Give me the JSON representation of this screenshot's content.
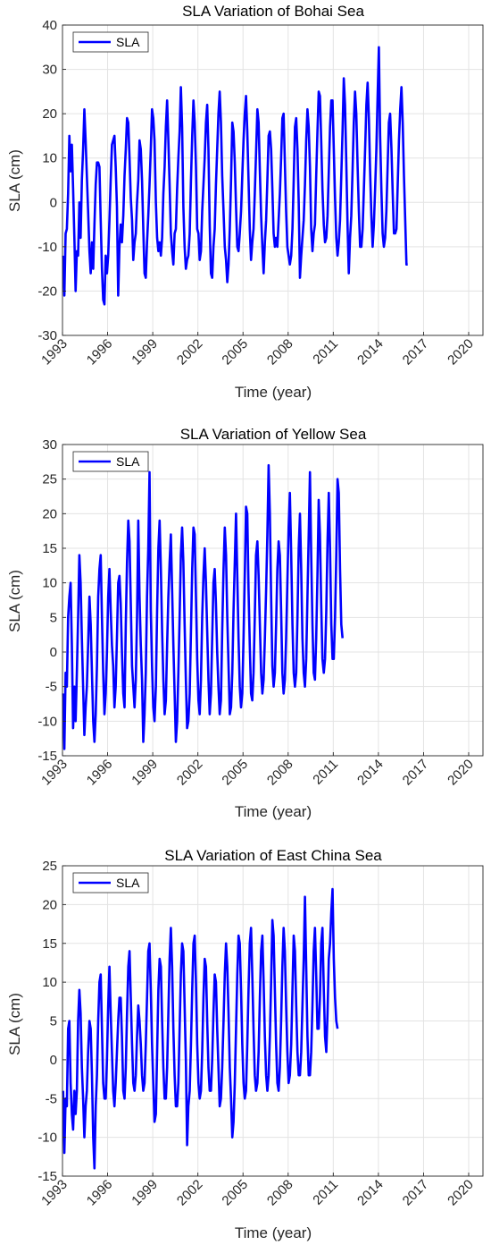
{
  "chart_data": [
    {
      "type": "line",
      "title": "SLA Variation of Bohai Sea",
      "xlabel": "Time (year)",
      "ylabel": "SLA (cm)",
      "xlim": [
        1993.0,
        2020.95
      ],
      "ylim": [
        -30,
        40
      ],
      "xticks": [
        "1993",
        "1996",
        "1999",
        "2002",
        "2005",
        "2008",
        "2011",
        "2014",
        "2017",
        "2020"
      ],
      "yticks": [
        "-30",
        "-20",
        "-10",
        "0",
        "10",
        "20",
        "30",
        "40"
      ],
      "grid": true,
      "legend": "top-left",
      "series": [
        {
          "name": "SLA",
          "color": "#0000ff",
          "x_start": 1993.04,
          "x_step": 0.0833,
          "values": [
            -12,
            -21,
            -7,
            -6,
            2,
            15,
            7,
            13,
            3,
            -8,
            -20,
            -11,
            -12,
            0,
            -8,
            5,
            12,
            21,
            14,
            6,
            -2,
            -11,
            -16,
            -9,
            -15,
            -5,
            4,
            9,
            9,
            8,
            -4,
            -15,
            -22,
            -23,
            -12,
            -16,
            -12,
            -4,
            5,
            13,
            14,
            15,
            8,
            -1,
            -21,
            -10,
            -5,
            -9,
            -3,
            6,
            12,
            19,
            18,
            10,
            1,
            -4,
            -13,
            -9,
            -7,
            0,
            5,
            14,
            12,
            5,
            -6,
            -16,
            -17,
            -9,
            -3,
            4,
            12,
            21,
            19,
            14,
            0,
            -8,
            -11,
            -9,
            -12,
            -8,
            2,
            8,
            17,
            23,
            14,
            4,
            -7,
            -11,
            -14,
            -7,
            -6,
            3,
            10,
            16,
            26,
            17,
            -1,
            -10,
            -15,
            -13,
            -12,
            -7,
            5,
            15,
            23,
            18,
            8,
            -6,
            -7,
            -13,
            -11,
            -2,
            4,
            10,
            18,
            22,
            12,
            -5,
            -16,
            -17,
            -10,
            -6,
            4,
            12,
            20,
            25,
            18,
            6,
            -2,
            -10,
            -13,
            -18,
            -14,
            -6,
            5,
            18,
            16,
            9,
            -1,
            -10,
            -11,
            -7,
            -2,
            6,
            14,
            20,
            24,
            16,
            5,
            -6,
            -13,
            -9,
            -6,
            2,
            11,
            21,
            18,
            7,
            -3,
            -10,
            -16,
            -9,
            -4,
            5,
            15,
            16,
            12,
            3,
            -7,
            -10,
            -8,
            -10,
            -4,
            2,
            10,
            19,
            20,
            9,
            -2,
            -10,
            -12,
            -14,
            -12,
            -6,
            5,
            17,
            19,
            12,
            0,
            -17,
            -12,
            -8,
            -4,
            4,
            14,
            21,
            17,
            8,
            -6,
            -11,
            -7,
            -5,
            6,
            16,
            25,
            24,
            14,
            3,
            -5,
            -9,
            -8,
            -3,
            7,
            17,
            23,
            23,
            12,
            1,
            -8,
            -12,
            -9,
            -4,
            6,
            16,
            28,
            22,
            9,
            -5,
            -16,
            -8,
            -3,
            7,
            18,
            25,
            20,
            8,
            -2,
            -10,
            -10,
            -6,
            3,
            12,
            22,
            27,
            19,
            7,
            -3,
            -10,
            -5,
            3,
            12,
            24,
            35,
            15,
            3,
            -7,
            -10,
            -8,
            -2,
            8,
            18,
            20,
            12,
            2,
            -7,
            -7,
            -6,
            4,
            14,
            21,
            26,
            18,
            6,
            -4,
            -14,
            -14
          ]
        }
      ]
    },
    {
      "type": "line",
      "title": "SLA Variation of Yellow Sea",
      "xlabel": "Time (year)",
      "ylabel": "SLA (cm)",
      "xlim": [
        1993.0,
        2020.95
      ],
      "ylim": [
        -15,
        30
      ],
      "xticks": [
        "1993",
        "1996",
        "1999",
        "2002",
        "2005",
        "2008",
        "2011",
        "2014",
        "2017",
        "2020"
      ],
      "yticks": [
        "-15",
        "-10",
        "-5",
        "0",
        "5",
        "10",
        "15",
        "20",
        "25",
        "30"
      ],
      "grid": true,
      "legend": "top-left",
      "series": [
        {
          "name": "SLA",
          "color": "#0000ff",
          "x_start": 1993.04,
          "x_step": 0.0833,
          "values": [
            -6,
            -14,
            -3,
            -5,
            5,
            8,
            10,
            1,
            -11,
            -5,
            -10,
            -3,
            5,
            14,
            10,
            2,
            -5,
            -12,
            -8,
            -5,
            1,
            8,
            4,
            -3,
            -10,
            -13,
            -9,
            -2,
            8,
            12,
            14,
            5,
            -3,
            -9,
            -6,
            0,
            8,
            12,
            6,
            1,
            -2,
            -8,
            -5,
            2,
            10,
            11,
            7,
            0,
            -6,
            -8,
            4,
            13,
            19,
            16,
            7,
            -2,
            -5,
            -8,
            -4,
            5,
            19,
            8,
            1,
            -4,
            -13,
            -9,
            -3,
            8,
            15,
            26,
            6,
            -2,
            -8,
            -10,
            -5,
            6,
            15,
            19,
            12,
            3,
            -4,
            -9,
            -7,
            1,
            8,
            13,
            17,
            9,
            1,
            -6,
            -13,
            -10,
            -3,
            5,
            14,
            18,
            13,
            4,
            -4,
            -11,
            -10,
            -6,
            3,
            12,
            18,
            17,
            8,
            -1,
            -7,
            -9,
            -4,
            5,
            11,
            15,
            10,
            3,
            -4,
            -9,
            -6,
            2,
            10,
            12,
            7,
            0,
            -5,
            -9,
            -7,
            3,
            12,
            18,
            14,
            5,
            -2,
            -9,
            -8,
            -3,
            6,
            13,
            20,
            11,
            2,
            -5,
            -8,
            -6,
            2,
            11,
            21,
            20,
            9,
            1,
            -6,
            -7,
            -3,
            5,
            14,
            16,
            11,
            4,
            -3,
            -6,
            -4,
            2,
            9,
            17,
            27,
            20,
            8,
            -2,
            -5,
            -3,
            4,
            12,
            16,
            14,
            6,
            -3,
            -6,
            -4,
            2,
            10,
            18,
            23,
            14,
            4,
            -3,
            -5,
            -3,
            5,
            15,
            20,
            12,
            2,
            -3,
            -5,
            -1,
            8,
            17,
            26,
            14,
            4,
            -3,
            -4,
            2,
            11,
            22,
            17,
            7,
            -1,
            -3,
            -1,
            6,
            16,
            23,
            15,
            4,
            -1,
            -1,
            5,
            14,
            25,
            23,
            12,
            4,
            2
          ]
        }
      ]
    },
    {
      "type": "line",
      "title": "SLA Variation of East China Sea",
      "xlabel": "Time (year)",
      "ylabel": "SLA (cm)",
      "xlim": [
        1993.0,
        2020.95
      ],
      "ylim": [
        -15,
        25
      ],
      "xticks": [
        "1993",
        "1996",
        "1999",
        "2002",
        "2005",
        "2008",
        "2011",
        "2014",
        "2017",
        "2020"
      ],
      "yticks": [
        "-15",
        "-10",
        "-5",
        "0",
        "5",
        "10",
        "15",
        "20",
        "25"
      ],
      "grid": true,
      "legend": "top-left",
      "series": [
        {
          "name": "SLA",
          "color": "#0000ff",
          "x_start": 1993.04,
          "x_step": 0.0833,
          "values": [
            -4,
            -12,
            -5,
            -6,
            4,
            5,
            -3,
            -7,
            -9,
            -4,
            -7,
            -4,
            5,
            9,
            6,
            -1,
            -5,
            -10,
            -6,
            -4,
            1,
            5,
            4,
            -2,
            -10,
            -14,
            -6,
            -2,
            5,
            10,
            11,
            4,
            -3,
            -5,
            -5,
            0,
            7,
            12,
            6,
            1,
            -4,
            -6,
            -3,
            1,
            5,
            8,
            8,
            3,
            -4,
            -5,
            -1,
            6,
            12,
            14,
            8,
            2,
            -3,
            -4,
            -2,
            3,
            7,
            5,
            2,
            -2,
            -4,
            -3,
            2,
            8,
            14,
            15,
            9,
            2,
            -3,
            -8,
            -7,
            1,
            9,
            13,
            12,
            5,
            -1,
            -5,
            -5,
            -1,
            6,
            13,
            17,
            12,
            4,
            -2,
            -6,
            -6,
            -3,
            4,
            11,
            15,
            14,
            7,
            0,
            -11,
            -6,
            -4,
            2,
            9,
            15,
            16,
            10,
            2,
            -3,
            -5,
            -4,
            1,
            8,
            13,
            12,
            5,
            -1,
            -4,
            -4,
            0,
            6,
            11,
            10,
            4,
            -1,
            -6,
            -5,
            -1,
            5,
            11,
            15,
            12,
            6,
            -1,
            -5,
            -10,
            -8,
            -3,
            4,
            11,
            16,
            15,
            9,
            2,
            -3,
            -5,
            -4,
            2,
            9,
            15,
            17,
            11,
            4,
            -2,
            -4,
            -3,
            1,
            8,
            14,
            16,
            10,
            3,
            -2,
            -4,
            -2,
            3,
            10,
            18,
            16,
            9,
            2,
            -3,
            -4,
            -1,
            5,
            12,
            17,
            14,
            7,
            1,
            -3,
            -2,
            2,
            9,
            16,
            14,
            7,
            1,
            -2,
            -2,
            1,
            7,
            13,
            21,
            12,
            3,
            -2,
            -2,
            1,
            7,
            14,
            17,
            11,
            4,
            4,
            8,
            15,
            17,
            9,
            3,
            1,
            6,
            13,
            15,
            19,
            22,
            13,
            8,
            5,
            4
          ]
        }
      ]
    }
  ]
}
